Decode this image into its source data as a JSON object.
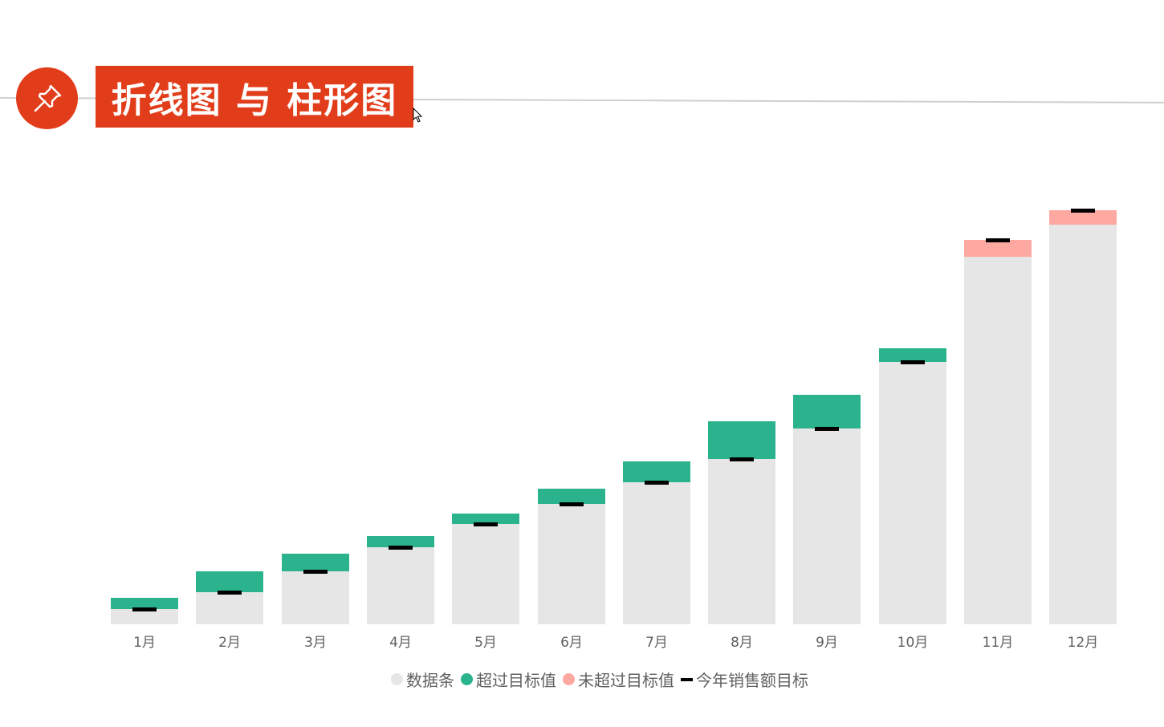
{
  "header": {
    "title": "折线图 与 柱形图",
    "icon": "pushpin-icon",
    "accent_color": "#e23d1a"
  },
  "chart_data": {
    "type": "bar",
    "title": "折线图 与 柱形图",
    "xlabel": "",
    "ylabel": "",
    "grid": false,
    "legend_position": "bottom",
    "categories": [
      "1月",
      "2月",
      "3月",
      "4月",
      "5月",
      "6月",
      "7月",
      "8月",
      "9月",
      "10月",
      "11月",
      "12月"
    ],
    "series": [
      {
        "name": "数据条",
        "color": "#e6e6e6",
        "values": [
          19,
          40,
          66,
          96,
          125,
          150,
          177,
          206,
          244,
          327,
          458,
          498
        ]
      },
      {
        "name": "超过目标值",
        "color": "#2bb38e",
        "values": [
          14,
          26,
          22,
          14,
          13,
          19,
          26,
          47,
          42,
          17,
          0,
          0
        ]
      },
      {
        "name": "未超过目标值",
        "color": "#fda8a0",
        "values": [
          0,
          0,
          0,
          0,
          0,
          0,
          0,
          0,
          0,
          0,
          21,
          18
        ]
      },
      {
        "name": "今年销售额目标",
        "color": "#000000",
        "values": [
          19,
          40,
          66,
          96,
          125,
          150,
          177,
          206,
          244,
          327,
          479,
          516
        ]
      }
    ],
    "ylim": [
      0,
      530
    ]
  },
  "legend": [
    {
      "label": "数据条",
      "color": "#e6e6e6",
      "shape": "dot"
    },
    {
      "label": "超过目标值",
      "color": "#2bb38e",
      "shape": "dot"
    },
    {
      "label": "未超过目标值",
      "color": "#fda8a0",
      "shape": "dot"
    },
    {
      "label": "今年销售额目标",
      "color": "#000000",
      "shape": "dash"
    }
  ]
}
